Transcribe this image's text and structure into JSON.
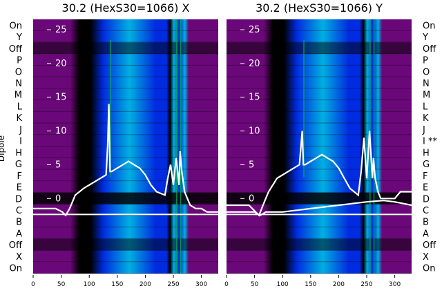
{
  "chart_data": [
    {
      "type": "heatmap",
      "title": "30.2 (HexS30=1066) X",
      "ylabel": "Dipole",
      "x_ticks": [
        0,
        50,
        100,
        150,
        200,
        250,
        300
      ],
      "xlim": [
        0,
        330
      ],
      "dipole_labels_top_to_bottom": [
        "On",
        "Y",
        "Off",
        "P",
        "O",
        "N",
        "M",
        "L",
        "K",
        "J",
        "I",
        "H",
        "G",
        "F",
        "E",
        "D",
        "C",
        "B",
        "A",
        "Off",
        "X",
        "On"
      ],
      "inner_y_ticks": [
        25,
        20,
        15,
        10,
        5,
        0
      ],
      "colors": {
        "background": "#7a0a8a",
        "low": "#000000",
        "mid": "#0032ff",
        "high": "#00c8ff",
        "peak": "#00b050",
        "trace": "#ffffff"
      },
      "white_traces": [
        {
          "x": [
            0,
            20,
            40,
            52,
            58,
            65,
            75,
            90,
            110,
            130,
            133,
            135,
            137,
            140,
            150,
            160,
            170,
            180,
            190,
            200,
            210,
            220,
            235,
            240,
            245,
            250,
            255,
            260,
            262,
            265,
            270,
            275,
            280,
            290,
            300,
            310,
            320,
            330
          ],
          "y": [
            -1.5,
            -1.5,
            -1.5,
            -2,
            -2.5,
            -1.5,
            0.5,
            1.5,
            2.5,
            3.5,
            8,
            14,
            4,
            4,
            4.5,
            5,
            5.5,
            5,
            4.5,
            3.5,
            2,
            1,
            0.5,
            3,
            5,
            2,
            6,
            2,
            7,
            4,
            1,
            0,
            -1,
            -1.5,
            -1.5,
            -2,
            -2,
            -2
          ]
        }
      ]
    },
    {
      "type": "heatmap",
      "title": "30.2 (HexS30=1066) Y",
      "x_ticks": [
        0,
        50,
        100,
        150,
        200,
        250,
        300
      ],
      "xlim": [
        0,
        330
      ],
      "dipole_labels_top_to_bottom": [
        "On",
        "Y",
        "Off",
        "P",
        "O",
        "N",
        "M",
        "L",
        "K",
        "J",
        "I **",
        "H",
        "G",
        "F",
        "E",
        "D",
        "C",
        "B",
        "A",
        "Off",
        "X",
        "On"
      ],
      "inner_y_ticks": [
        25,
        20,
        15,
        10,
        5,
        0
      ],
      "colors": {
        "background": "#7a0a8a",
        "low": "#000000",
        "mid": "#0032ff",
        "high": "#00c8ff",
        "peak": "#00b050",
        "trace": "#ffffff"
      },
      "white_traces": [
        {
          "x": [
            0,
            20,
            40,
            52,
            58,
            65,
            75,
            90,
            110,
            130,
            133,
            135,
            137,
            140,
            150,
            160,
            170,
            180,
            190,
            200,
            210,
            220,
            235,
            240,
            245,
            250,
            255,
            260,
            262,
            265,
            270,
            275,
            280,
            290,
            300,
            310,
            320,
            330
          ],
          "y": [
            -1,
            -1,
            -1,
            -2,
            -2.5,
            -1,
            1,
            3,
            4,
            5,
            8,
            10,
            5,
            5,
            5.5,
            6,
            6.5,
            6,
            5.5,
            4.5,
            3,
            1.5,
            0.5,
            4,
            9,
            3,
            10,
            3,
            6,
            3,
            1,
            0,
            0,
            0,
            0,
            1,
            1,
            1
          ]
        },
        {
          "x": [
            0,
            50,
            60,
            70,
            100,
            150,
            200,
            250,
            280,
            300,
            330
          ],
          "y": [
            -2,
            -2,
            -2.5,
            -2,
            -2,
            -1.5,
            -1,
            -0.5,
            -0.3,
            -0.5,
            -1
          ]
        }
      ]
    }
  ]
}
